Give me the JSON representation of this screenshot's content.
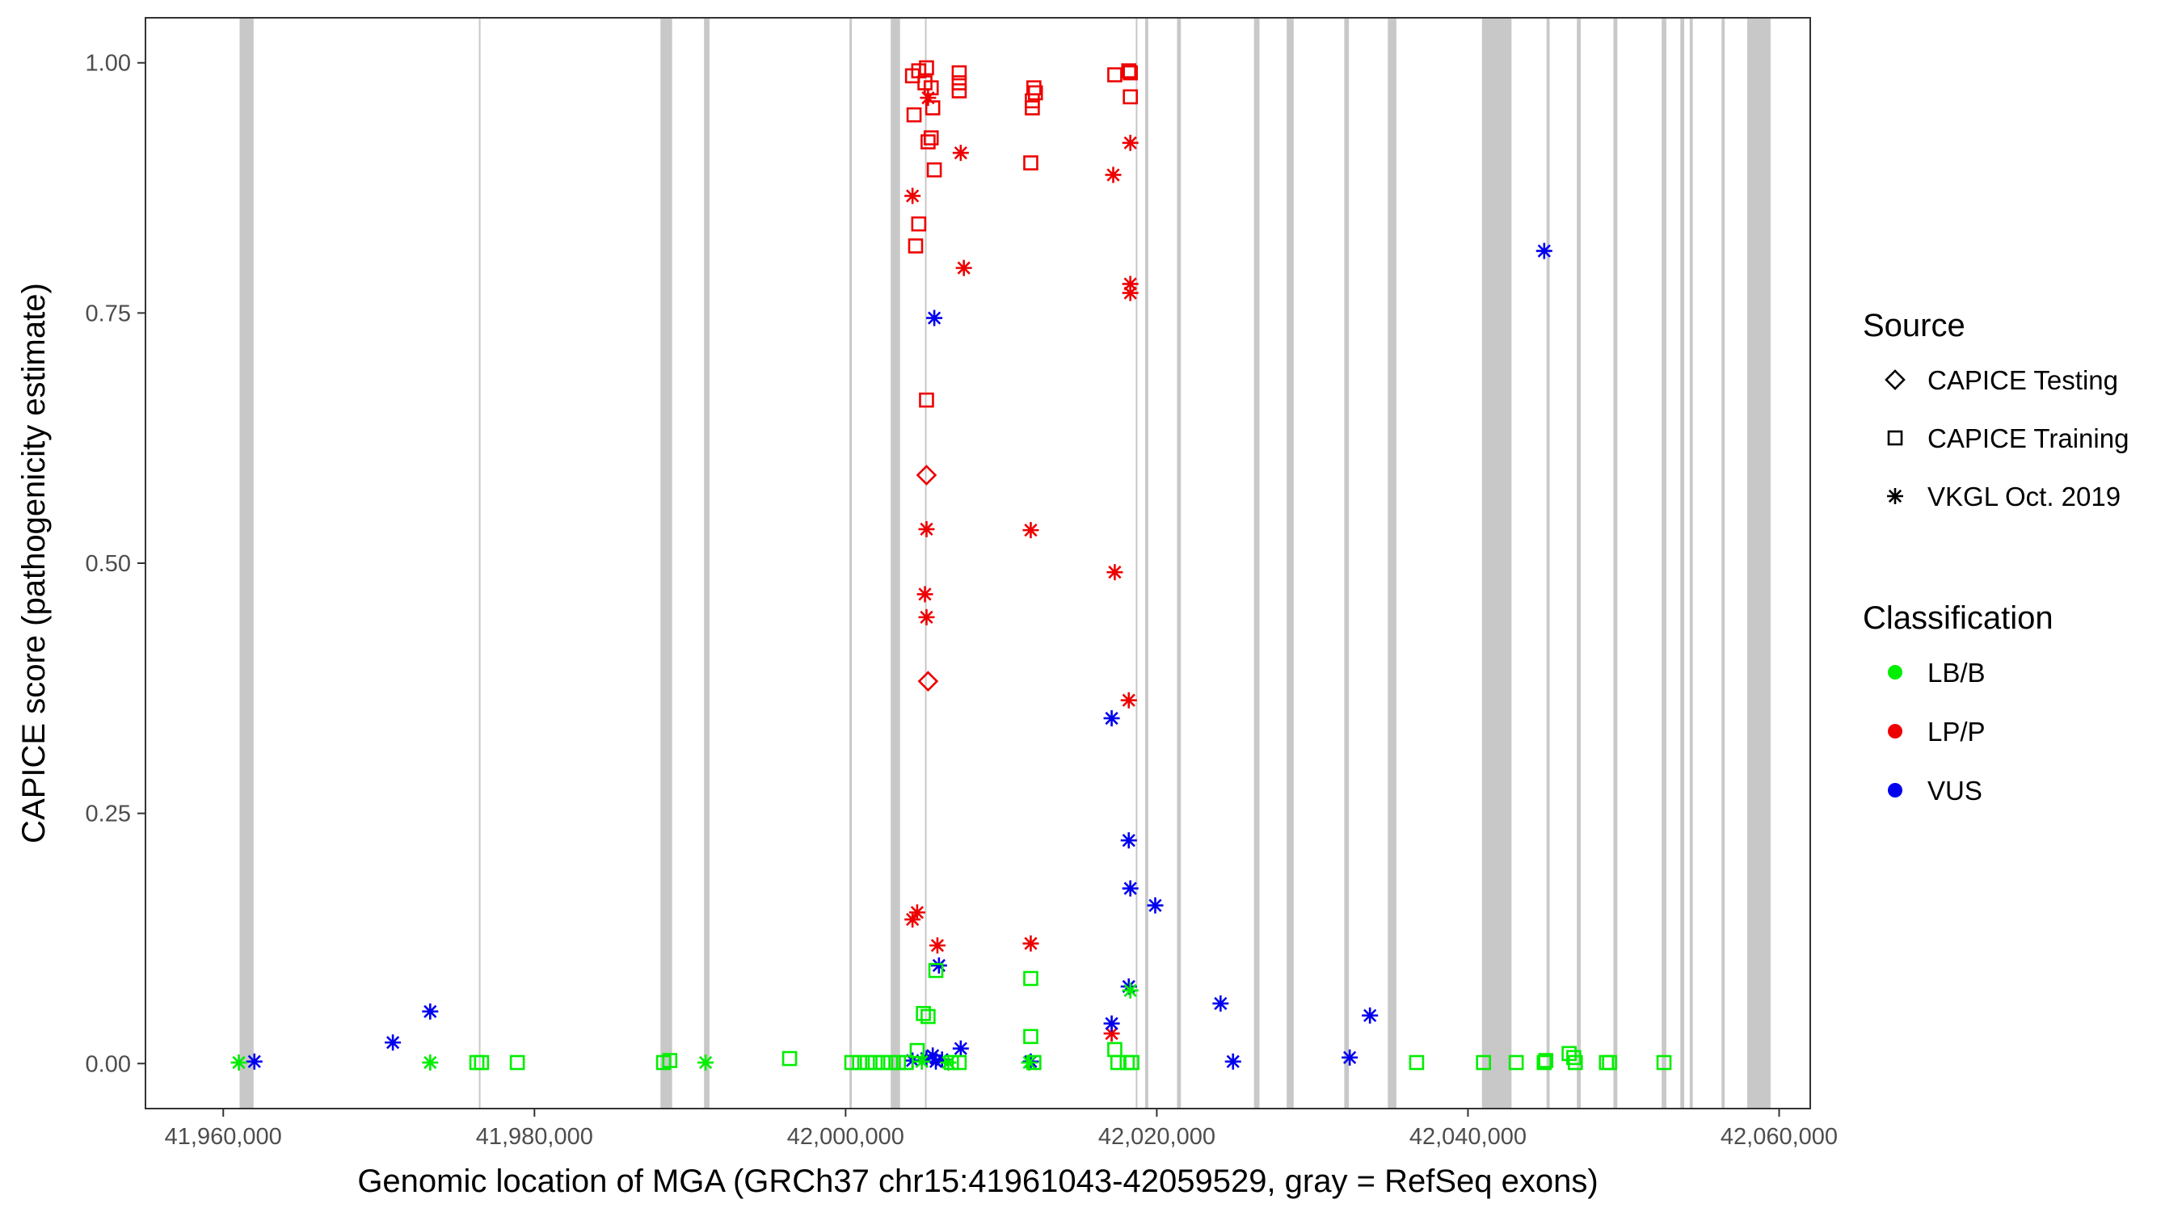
{
  "chart_data": {
    "type": "scatter",
    "xlabel": "Genomic location of MGA (GRCh37 chr15:41961043-42059529, gray = RefSeq exons)",
    "ylabel": "CAPICE score (pathogenicity estimate)",
    "xlim": [
      41955000,
      42062000
    ],
    "ylim": [
      -0.045,
      1.045
    ],
    "x_ticks": [
      41960000,
      41980000,
      42000000,
      42020000,
      42040000,
      42060000
    ],
    "x_tick_labels": [
      "41,960,000",
      "41,980,000",
      "42,000,000",
      "42,020,000",
      "42,040,000",
      "42,060,000"
    ],
    "y_ticks": [
      0,
      0.25,
      0.5,
      0.75,
      1
    ],
    "y_tick_labels": [
      "0.00",
      "0.25",
      "0.50",
      "0.75",
      "1.00"
    ],
    "grid": false,
    "legend_position": "right",
    "exons": [
      [
        41961050,
        41961950
      ],
      [
        41976430,
        41976480
      ],
      [
        41988100,
        41988850
      ],
      [
        41990900,
        41991250
      ],
      [
        42000250,
        42000400
      ],
      [
        42002900,
        42003500
      ],
      [
        42005100,
        42005200
      ],
      [
        42018650,
        42018750
      ],
      [
        42019250,
        42019450
      ],
      [
        42021300,
        42021550
      ],
      [
        42026250,
        42026600
      ],
      [
        42028350,
        42028800
      ],
      [
        42032050,
        42032350
      ],
      [
        42034850,
        42035400
      ],
      [
        42040900,
        42041250
      ],
      [
        42041250,
        42042800
      ],
      [
        42045050,
        42045250
      ],
      [
        42047000,
        42047250
      ],
      [
        42049350,
        42049600
      ],
      [
        42052450,
        42052750
      ],
      [
        42053650,
        42053900
      ],
      [
        42054250,
        42054450
      ],
      [
        42056300,
        42056500
      ],
      [
        42057950,
        42059450
      ]
    ],
    "legend": {
      "source_title": "Source",
      "source_items": [
        {
          "label": "CAPICE Testing",
          "shape": "diamond"
        },
        {
          "label": "CAPICE Training",
          "shape": "square"
        },
        {
          "label": "VKGL Oct. 2019",
          "shape": "asterisk"
        }
      ],
      "classification_title": "Classification",
      "classification_items": [
        {
          "label": "LB/B",
          "color": "#00ee00"
        },
        {
          "label": "LP/P",
          "color": "#ee0000"
        },
        {
          "label": "VUS",
          "color": "#0000ee"
        }
      ]
    },
    "series": [
      {
        "classification": "LP/P",
        "source": "CAPICE Training",
        "points": [
          [
            42004300,
            0.987
          ],
          [
            42004700,
            0.992
          ],
          [
            42005100,
            0.98
          ],
          [
            42005200,
            0.995
          ],
          [
            42005500,
            0.975
          ],
          [
            42004400,
            0.948
          ],
          [
            42005600,
            0.955
          ],
          [
            42005300,
            0.921
          ],
          [
            42005500,
            0.925
          ],
          [
            42005700,
            0.893
          ],
          [
            42004700,
            0.839
          ],
          [
            42004500,
            0.817
          ],
          [
            42005200,
            0.663
          ],
          [
            42007300,
            0.99
          ],
          [
            42007300,
            0.98
          ],
          [
            42007300,
            0.972
          ],
          [
            42012100,
            0.975
          ],
          [
            42012200,
            0.97
          ],
          [
            42012000,
            0.962
          ],
          [
            42012000,
            0.955
          ],
          [
            42011900,
            0.9
          ],
          [
            42017300,
            0.988
          ],
          [
            42018200,
            0.992
          ],
          [
            42018300,
            0.99
          ],
          [
            42018300,
            0.966
          ]
        ]
      },
      {
        "classification": "LP/P",
        "source": "VKGL Oct. 2019",
        "points": [
          [
            42005300,
            0.965
          ],
          [
            42007400,
            0.91
          ],
          [
            42004300,
            0.867
          ],
          [
            42007600,
            0.795
          ],
          [
            42005200,
            0.534
          ],
          [
            42005100,
            0.469
          ],
          [
            42005200,
            0.446
          ],
          [
            42004600,
            0.151
          ],
          [
            42004300,
            0.144
          ],
          [
            42005900,
            0.118
          ],
          [
            42011900,
            0.533
          ],
          [
            42011900,
            0.12
          ],
          [
            42017200,
            0.888
          ],
          [
            42018300,
            0.92
          ],
          [
            42018300,
            0.779
          ],
          [
            42018300,
            0.77
          ],
          [
            42017300,
            0.491
          ],
          [
            42018200,
            0.363
          ],
          [
            42017100,
            0.03
          ]
        ]
      },
      {
        "classification": "LP/P",
        "source": "CAPICE Testing",
        "points": [
          [
            42005200,
            0.588
          ],
          [
            42005300,
            0.382
          ]
        ]
      },
      {
        "classification": "VUS",
        "source": "VKGL Oct. 2019",
        "points": [
          [
            41962000,
            0.002
          ],
          [
            41970900,
            0.021
          ],
          [
            41973300,
            0.052
          ],
          [
            42005700,
            0.745
          ],
          [
            42006000,
            0.098
          ],
          [
            42007400,
            0.015
          ],
          [
            42004300,
            0.003
          ],
          [
            42005200,
            0.005
          ],
          [
            42005600,
            0.008
          ],
          [
            42005800,
            0.002
          ],
          [
            42006200,
            0.004
          ],
          [
            42011900,
            0.002
          ],
          [
            42017100,
            0.345
          ],
          [
            42018200,
            0.223
          ],
          [
            42018300,
            0.175
          ],
          [
            42019900,
            0.158
          ],
          [
            42018200,
            0.077
          ],
          [
            42017100,
            0.04
          ],
          [
            42024100,
            0.06
          ],
          [
            42024900,
            0.002
          ],
          [
            42032400,
            0.006
          ],
          [
            42033700,
            0.048
          ],
          [
            42044900,
            0.812
          ]
        ]
      },
      {
        "classification": "LB/B",
        "source": "CAPICE Training",
        "points": [
          [
            41976300,
            0.001
          ],
          [
            41976600,
            0.001
          ],
          [
            41978900,
            0.001
          ],
          [
            41988300,
            0.001
          ],
          [
            41988700,
            0.003
          ],
          [
            41996400,
            0.005
          ],
          [
            42000400,
            0.001
          ],
          [
            42000900,
            0.001
          ],
          [
            42001400,
            0.001
          ],
          [
            42001900,
            0.001
          ],
          [
            42002400,
            0.001
          ],
          [
            42002900,
            0.001
          ],
          [
            42003400,
            0.001
          ],
          [
            42003900,
            0.001
          ],
          [
            42004600,
            0.013
          ],
          [
            42005000,
            0.05
          ],
          [
            42005300,
            0.047
          ],
          [
            42005800,
            0.093
          ],
          [
            42006800,
            0.001
          ],
          [
            42007300,
            0.001
          ],
          [
            42011900,
            0.085
          ],
          [
            42011900,
            0.027
          ],
          [
            42012100,
            0.001
          ],
          [
            42017300,
            0.014
          ],
          [
            42017500,
            0.001
          ],
          [
            42018100,
            0.001
          ],
          [
            42018400,
            0.001
          ],
          [
            42036700,
            0.001
          ],
          [
            42041000,
            0.001
          ],
          [
            42043100,
            0.001
          ],
          [
            42044900,
            0.001
          ],
          [
            42045000,
            0.003
          ],
          [
            42046500,
            0.01
          ],
          [
            42046800,
            0.006
          ],
          [
            42046900,
            0.001
          ],
          [
            42048900,
            0.001
          ],
          [
            42049100,
            0.001
          ],
          [
            42052600,
            0.001
          ]
        ]
      },
      {
        "classification": "LB/B",
        "source": "VKGL Oct. 2019",
        "points": [
          [
            41961000,
            0.001
          ],
          [
            41973300,
            0.001
          ],
          [
            41991000,
            0.001
          ],
          [
            42004900,
            0.002
          ],
          [
            42006600,
            0.001
          ],
          [
            42011800,
            0.001
          ],
          [
            42018300,
            0.073
          ]
        ]
      }
    ]
  }
}
